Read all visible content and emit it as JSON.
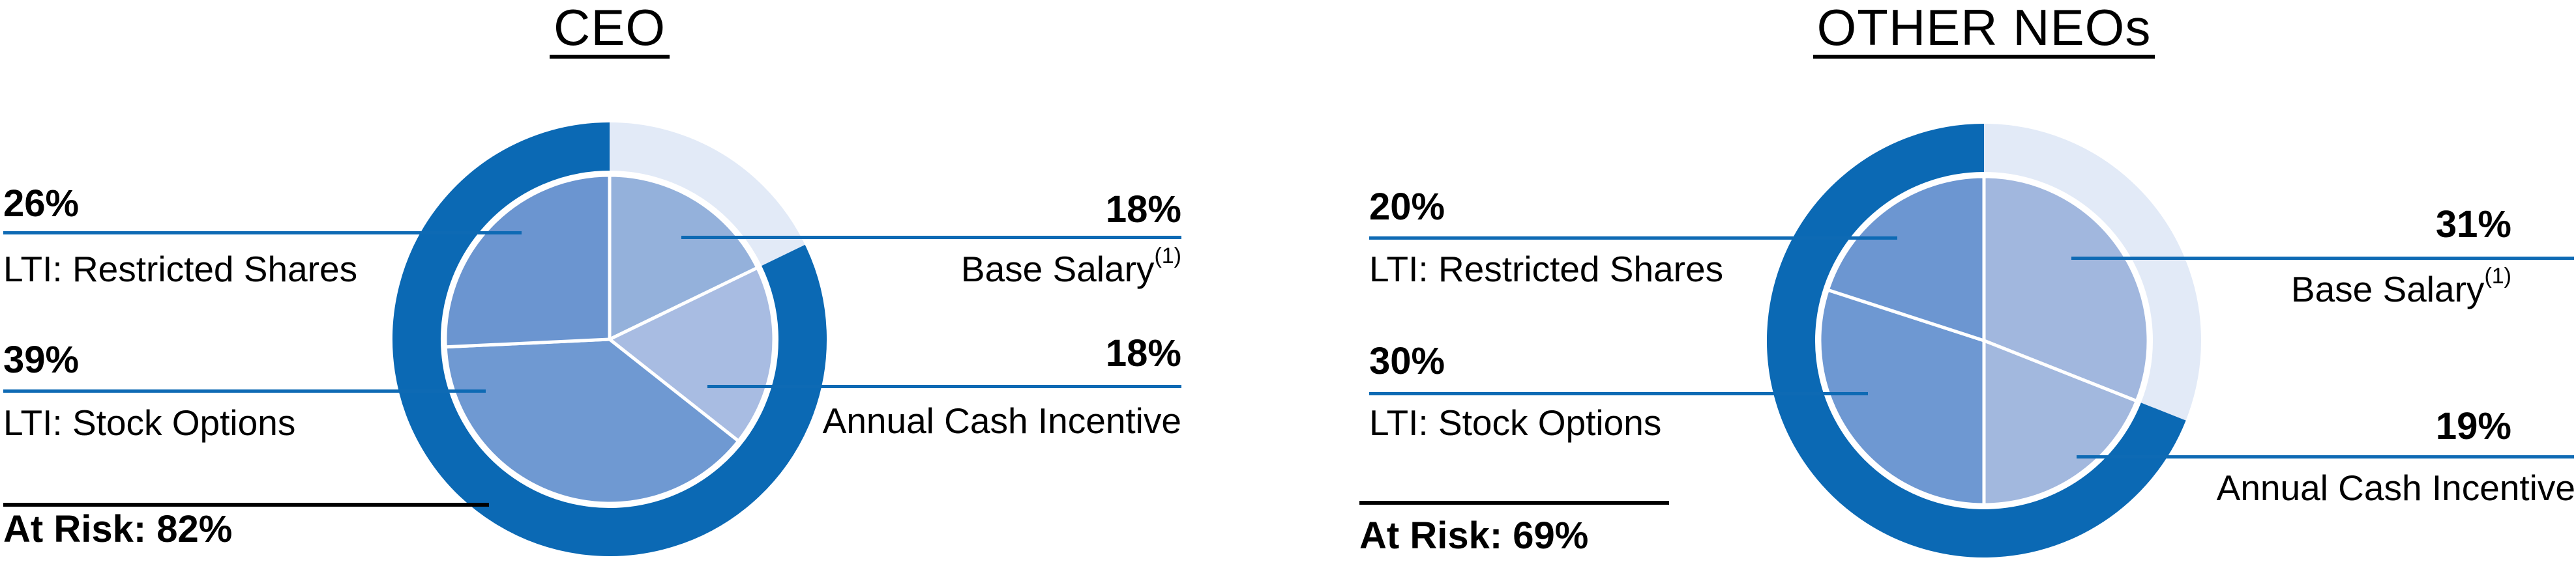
{
  "page": {
    "background": "#ffffff",
    "description_left_chart": "CEO",
    "description_right_chart": "OTHER NEOs"
  },
  "colors": {
    "ring_dark": "#0b69b4",
    "ring_pale": "#e2eaf7",
    "leader_blue": "#0e6ab4",
    "leader_black": "#000000",
    "slice_border_white": "#ffffff"
  },
  "chart_data": [
    {
      "type": "pie",
      "title": "CEO",
      "legend_position": "callouts-left-right",
      "ring": {
        "at_risk_value": 82,
        "dark_color": "#0b69b4",
        "pale_color": "#e2eaf7",
        "note": "outer ring: pale arc spans Base Salary slice, dark arc spans remaining (at-risk) 82%"
      },
      "at_risk_label": "At Risk: 82%",
      "slices": [
        {
          "label": "Base Salary",
          "suffix": "(1)",
          "value": 18,
          "value_label": "18%",
          "color": "#94b1db"
        },
        {
          "label": "Annual Cash Incentive",
          "value": 18,
          "value_label": "18%",
          "color": "#a8bce2"
        },
        {
          "label": "LTI: Stock Options",
          "value": 39,
          "value_label": "39%",
          "color": "#6f99d2"
        },
        {
          "label": "LTI: Restricted Shares",
          "value": 26,
          "value_label": "26%",
          "color": "#6b95d0"
        }
      ]
    },
    {
      "type": "pie",
      "title": "OTHER NEOs",
      "legend_position": "callouts-left-right",
      "ring": {
        "at_risk_value": 69,
        "dark_color": "#0b69b4",
        "pale_color": "#e2eaf7",
        "note": "outer ring: pale arc spans Base Salary slice, dark arc spans remaining (at-risk) 69%"
      },
      "at_risk_label": "At Risk: 69%",
      "slices": [
        {
          "label": "Base Salary",
          "suffix": "(1)",
          "value": 31,
          "value_label": "31%",
          "color": "#a1b7de"
        },
        {
          "label": "Annual Cash Incentive",
          "value": 19,
          "value_label": "19%",
          "color": "#a2b8de"
        },
        {
          "label": "LTI: Stock Options",
          "value": 30,
          "value_label": "30%",
          "color": "#6e98d2"
        },
        {
          "label": "LTI: Restricted Shares",
          "value": 20,
          "value_label": "20%",
          "color": "#6c96d1"
        }
      ]
    }
  ]
}
